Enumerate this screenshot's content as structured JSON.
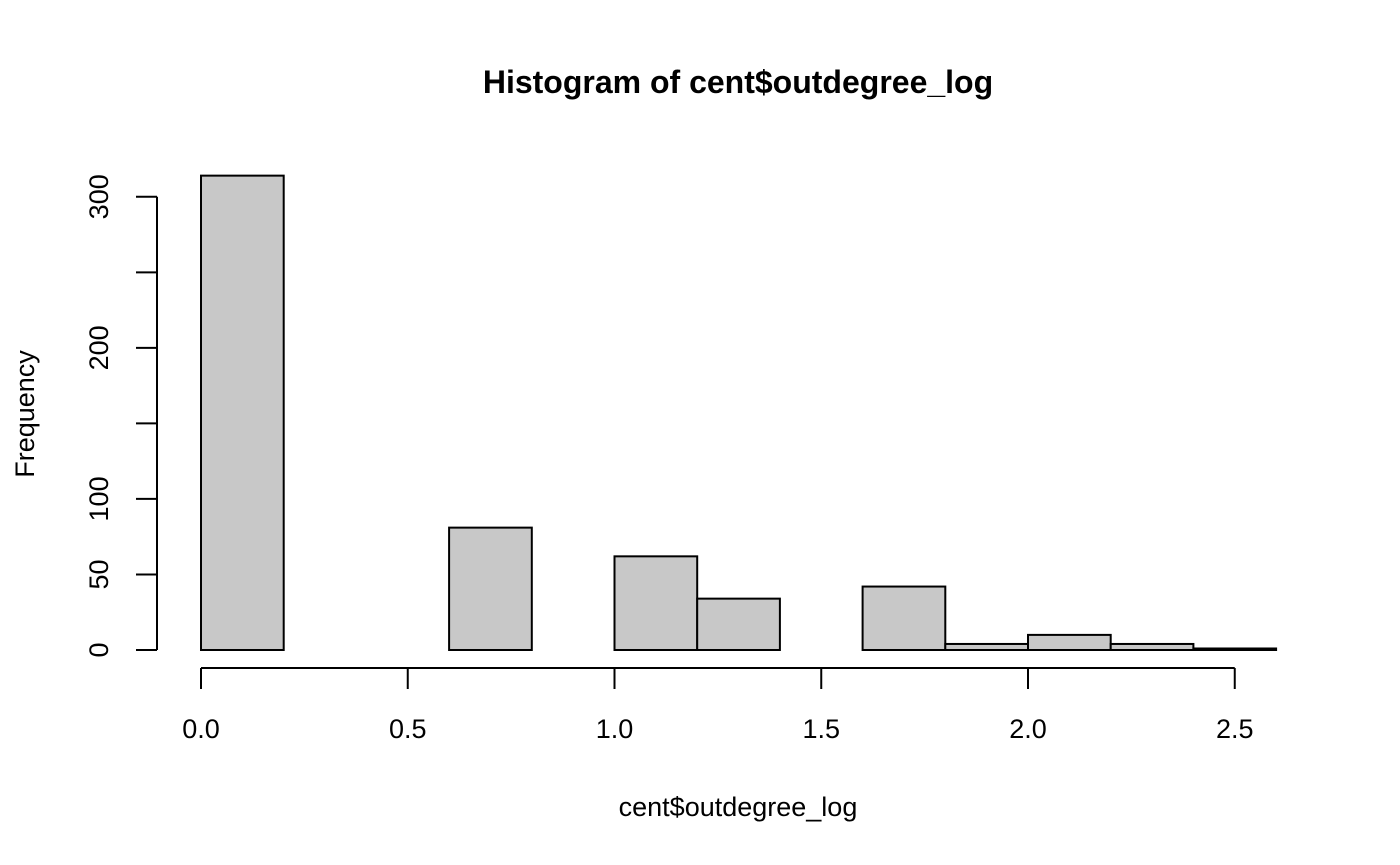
{
  "chart_data": {
    "type": "bar",
    "title": "Histogram of cent$outdegree_log",
    "xlabel": "cent$outdegree_log",
    "ylabel": "Frequency",
    "bins": [
      {
        "x0": 0.0,
        "x1": 0.2,
        "count": 314
      },
      {
        "x0": 0.2,
        "x1": 0.4,
        "count": 0
      },
      {
        "x0": 0.4,
        "x1": 0.6,
        "count": 0
      },
      {
        "x0": 0.6,
        "x1": 0.8,
        "count": 81
      },
      {
        "x0": 0.8,
        "x1": 1.0,
        "count": 0
      },
      {
        "x0": 1.0,
        "x1": 1.2,
        "count": 62
      },
      {
        "x0": 1.2,
        "x1": 1.4,
        "count": 34
      },
      {
        "x0": 1.4,
        "x1": 1.6,
        "count": 0
      },
      {
        "x0": 1.6,
        "x1": 1.8,
        "count": 42
      },
      {
        "x0": 1.8,
        "x1": 2.0,
        "count": 4
      },
      {
        "x0": 2.0,
        "x1": 2.2,
        "count": 10
      },
      {
        "x0": 2.2,
        "x1": 2.4,
        "count": 4
      },
      {
        "x0": 2.4,
        "x1": 2.6,
        "count": 1
      }
    ],
    "xlim": [
      0,
      2.6
    ],
    "ylim": [
      0,
      314
    ],
    "x_ticks": [
      0.0,
      0.5,
      1.0,
      1.5,
      2.0,
      2.5
    ],
    "x_tick_labels": [
      "0.0",
      "0.5",
      "1.0",
      "1.5",
      "2.0",
      "2.5"
    ],
    "y_ticks": [
      0,
      50,
      100,
      150,
      200,
      250,
      300
    ],
    "y_tick_labels": [
      "0",
      "50",
      "100",
      "",
      "200",
      "",
      "300"
    ],
    "grid": false,
    "legend": "none",
    "bar_color": "#c8c8c8",
    "edge_color": "#000000"
  }
}
